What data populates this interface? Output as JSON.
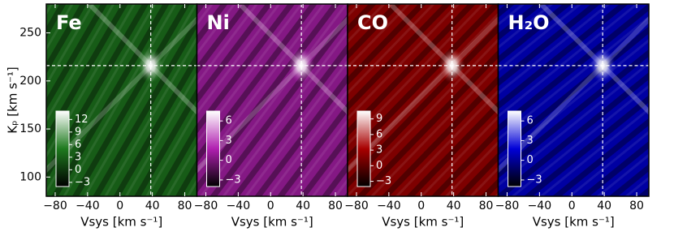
{
  "chart_data": [
    {
      "type": "heatmap",
      "title": "Fe",
      "xlabel": "Vsys [km s⁻¹]",
      "ylabel": "Kₚ [km s⁻¹]",
      "xlim": [
        -91,
        95
      ],
      "ylim": [
        80,
        280
      ],
      "xticks": [
        {
          "value": -80,
          "label": "−80"
        },
        {
          "value": -40,
          "label": "−40"
        },
        0,
        40,
        80
      ],
      "yticks": [
        100,
        150,
        200,
        250
      ],
      "crosshair": {
        "x": 38,
        "y": 216
      },
      "colormap": [
        "#000000",
        "#1e7a1e",
        "#ffffff"
      ],
      "clim": [
        -4,
        14
      ],
      "cticks": [
        {
          "value": -3,
          "label": "−3"
        },
        0,
        3,
        6,
        9,
        12
      ]
    },
    {
      "type": "heatmap",
      "title": "Ni",
      "xlabel": "Vsys [km s⁻¹]",
      "xlim": [
        -91,
        95
      ],
      "ylim": [
        80,
        280
      ],
      "xticks": [
        {
          "value": -80,
          "label": "−80"
        },
        {
          "value": -40,
          "label": "−40"
        },
        0,
        40,
        80
      ],
      "crosshair": {
        "x": 38,
        "y": 216
      },
      "colormap": [
        "#000000",
        "#b020b0",
        "#ffffff"
      ],
      "clim": [
        -4,
        7.5
      ],
      "cticks": [
        {
          "value": -3,
          "label": "−3"
        },
        0,
        3,
        6
      ]
    },
    {
      "type": "heatmap",
      "title": "CO",
      "xlabel": "Vsys [km s⁻¹]",
      "xlim": [
        -91,
        95
      ],
      "ylim": [
        80,
        280
      ],
      "xticks": [
        {
          "value": -80,
          "label": "−80"
        },
        {
          "value": -40,
          "label": "−40"
        },
        0,
        40,
        80
      ],
      "crosshair": {
        "x": 38,
        "y": 216
      },
      "colormap": [
        "#000000",
        "#a80000",
        "#ffffff"
      ],
      "clim": [
        -4,
        10.5
      ],
      "cticks": [
        {
          "value": -3,
          "label": "−3"
        },
        0,
        3,
        6,
        9
      ]
    },
    {
      "type": "heatmap",
      "title": "H₂O",
      "xlabel": "Vsys [km s⁻¹]",
      "xlim": [
        -91,
        95
      ],
      "ylim": [
        80,
        280
      ],
      "xticks": [
        {
          "value": -80,
          "label": "−80"
        },
        {
          "value": -40,
          "label": "−40"
        },
        0,
        40,
        80
      ],
      "crosshair": {
        "x": 38,
        "y": 216
      },
      "colormap": [
        "#000000",
        "#0000d8",
        "#ffffff"
      ],
      "clim": [
        -4,
        7.5
      ],
      "cticks": [
        {
          "value": -3,
          "label": "−3"
        },
        0,
        3,
        6
      ]
    }
  ]
}
